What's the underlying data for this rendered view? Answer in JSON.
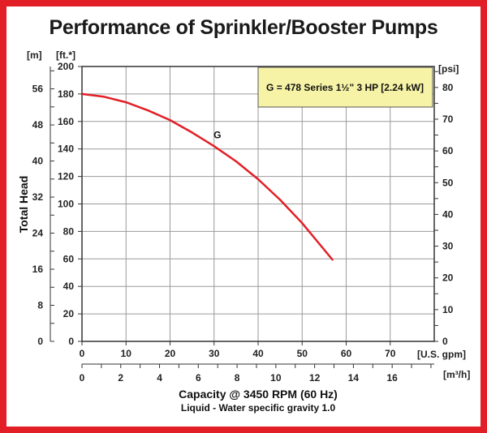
{
  "title": "Performance of Sprinkler/Booster Pumps",
  "colors": {
    "frame": "#e21f26",
    "curve": "#e21f26",
    "legend_fill": "#f7f3a6",
    "grid": "#9a9a9a"
  },
  "chart_data": {
    "type": "line",
    "title": "Performance of Sprinkler/Booster Pumps",
    "xlabel": "Capacity @ 3450 RPM (60 Hz)",
    "ylabel": "Total Head",
    "note": "Liquid - Water specific gravity 1.0",
    "legend": {
      "text": "G = 478 Series 1½\" 3 HP [2.24 kW]",
      "placement": "top-right"
    },
    "grid": true,
    "x_axis": {
      "unit": "[U.S. gpm]",
      "range": [
        0,
        80
      ],
      "ticks": [
        "0",
        "10",
        "20",
        "30",
        "40",
        "50",
        "60",
        "70"
      ]
    },
    "x2_axis": {
      "unit": "[m³/h]",
      "range": [
        0,
        18.17
      ],
      "ticks": [
        "0",
        "2",
        "4",
        "6",
        "8",
        "10",
        "12",
        "14",
        "16"
      ]
    },
    "y_axis": {
      "unit": "[ft.*]",
      "range": [
        0,
        200
      ],
      "ticks": [
        "0",
        "20",
        "40",
        "60",
        "80",
        "100",
        "120",
        "140",
        "160",
        "180",
        "200"
      ]
    },
    "y_left2_axis": {
      "unit": "[m]",
      "range": [
        0,
        60.96
      ],
      "ticks": [
        "0",
        "8",
        "16",
        "24",
        "32",
        "40",
        "48",
        "56"
      ]
    },
    "y_right_axis": {
      "unit": "[psi]",
      "range": [
        0,
        86.6
      ],
      "ticks": [
        "0",
        "10",
        "20",
        "30",
        "40",
        "50",
        "60",
        "70",
        "80"
      ]
    },
    "series": [
      {
        "name": "G",
        "x": [
          0,
          5,
          10,
          15,
          20,
          25,
          30,
          35,
          40,
          45,
          50,
          57
        ],
        "y": [
          180,
          178,
          174,
          168,
          161,
          152,
          142,
          131,
          118,
          103,
          86,
          59
        ]
      }
    ]
  }
}
